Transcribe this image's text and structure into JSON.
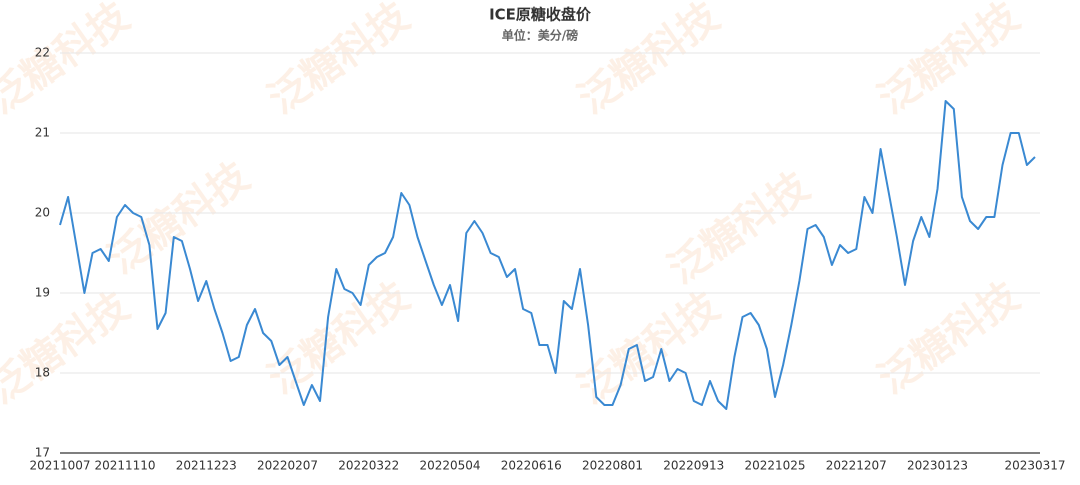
{
  "chart_data": {
    "type": "line",
    "title": "ICE原糖收盘价",
    "subtitle": "单位：美分/磅",
    "watermark": "泛糖科技",
    "categories": [
      "20211007",
      null,
      null,
      null,
      null,
      null,
      null,
      null,
      "20211110",
      null,
      null,
      null,
      null,
      null,
      null,
      null,
      null,
      null,
      "20211223",
      null,
      null,
      null,
      null,
      null,
      null,
      null,
      null,
      null,
      "20220207",
      null,
      null,
      null,
      null,
      null,
      null,
      null,
      null,
      null,
      "20220322",
      null,
      null,
      null,
      null,
      null,
      null,
      null,
      null,
      null,
      "20220504",
      null,
      null,
      null,
      null,
      null,
      null,
      null,
      null,
      null,
      "20220616",
      null,
      null,
      null,
      null,
      null,
      null,
      null,
      null,
      null,
      "20220801",
      null,
      null,
      null,
      null,
      null,
      null,
      null,
      null,
      null,
      "20220913",
      null,
      null,
      null,
      null,
      null,
      null,
      null,
      null,
      null,
      "20221025",
      null,
      null,
      null,
      null,
      null,
      null,
      null,
      null,
      null,
      "20221207",
      null,
      null,
      null,
      null,
      null,
      null,
      null,
      null,
      null,
      "20230123",
      null,
      null,
      null,
      null,
      null,
      null,
      null,
      null,
      null,
      null,
      null,
      "20230317"
    ],
    "series": [
      {
        "name": "ICE原糖收盘价",
        "color": "#3a89d2",
        "values": [
          19.85,
          20.2,
          19.6,
          19.0,
          19.5,
          19.55,
          19.4,
          19.95,
          20.1,
          20.0,
          19.95,
          19.6,
          18.55,
          18.75,
          19.7,
          19.65,
          19.3,
          18.9,
          19.15,
          18.8,
          18.5,
          18.15,
          18.2,
          18.6,
          18.8,
          18.5,
          18.4,
          18.1,
          18.2,
          17.9,
          17.6,
          17.85,
          17.65,
          18.7,
          19.3,
          19.05,
          19.0,
          18.85,
          19.35,
          19.45,
          19.5,
          19.7,
          20.25,
          20.1,
          19.7,
          19.4,
          19.1,
          18.85,
          19.1,
          18.65,
          19.75,
          19.9,
          19.75,
          19.5,
          19.45,
          19.2,
          19.3,
          18.8,
          18.75,
          18.35,
          18.35,
          18.0,
          18.9,
          18.8,
          19.3,
          18.6,
          17.7,
          17.6,
          17.6,
          17.85,
          18.3,
          18.35,
          17.9,
          17.95,
          18.3,
          17.9,
          18.05,
          18.0,
          17.65,
          17.6,
          17.9,
          17.65,
          17.55,
          18.2,
          18.7,
          18.75,
          18.6,
          18.3,
          17.7,
          18.1,
          18.6,
          19.15,
          19.8,
          19.85,
          19.7,
          19.35,
          19.6,
          19.5,
          19.55,
          20.2,
          20.0,
          20.8,
          20.25,
          19.7,
          19.1,
          19.65,
          19.95,
          19.7,
          20.3,
          21.4,
          21.3,
          20.2,
          19.9,
          19.8,
          19.95,
          19.95,
          20.6,
          21.0,
          21.0,
          20.6,
          20.7
        ]
      }
    ],
    "ylim": [
      17,
      22
    ],
    "yticks": [
      17,
      18,
      19,
      20,
      21,
      22
    ],
    "grid": true
  }
}
